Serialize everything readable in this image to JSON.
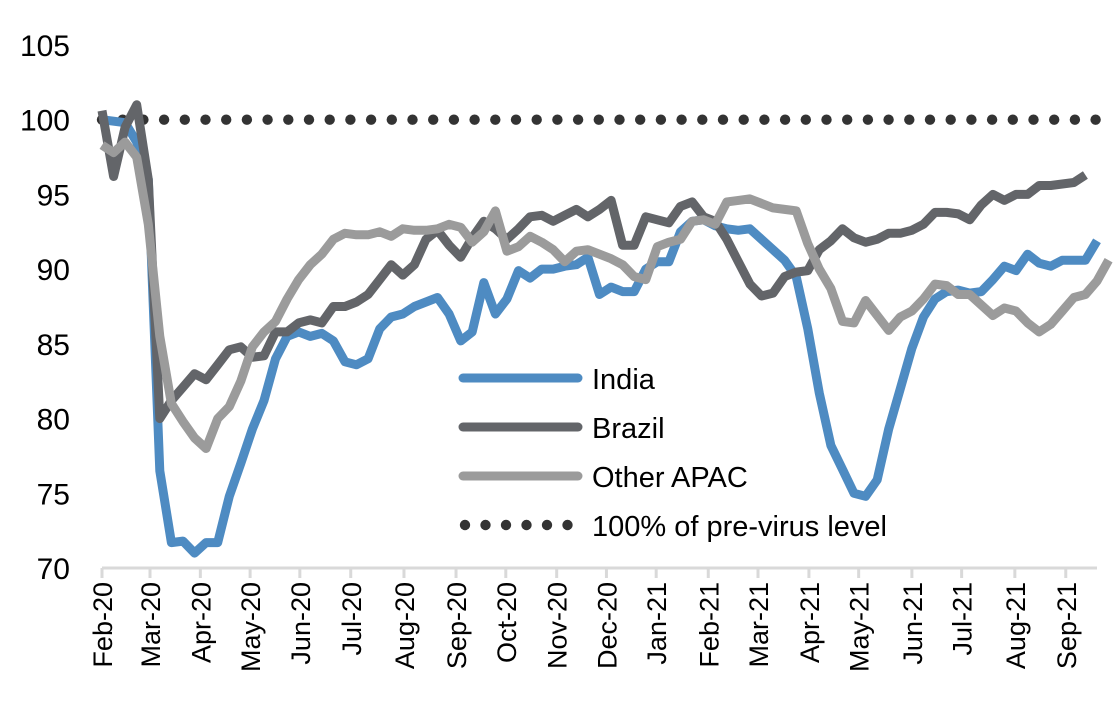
{
  "chart_data": {
    "type": "line",
    "title": "",
    "xlabel": "",
    "ylabel": "",
    "ylim": [
      70,
      105
    ],
    "yticks": [
      "70",
      "75",
      "80",
      "85",
      "90",
      "95",
      "100",
      "105"
    ],
    "ytick_values": [
      70,
      75,
      80,
      85,
      90,
      95,
      100,
      105
    ],
    "xticks": [
      "Feb-20",
      "Mar-20",
      "Apr-20",
      "May-20",
      "Jun-20",
      "Jul-20",
      "Aug-20",
      "Sep-20",
      "Oct-20",
      "Nov-20",
      "Dec-20",
      "Jan-21",
      "Feb-21",
      "Mar-21",
      "Apr-21",
      "May-21",
      "Jun-21",
      "Jul-21",
      "Aug-21",
      "Sep-21"
    ],
    "x_unit": "weeks since start (Feb-20), ~4.35 weeks per month tick",
    "xtick_weeks": [
      0,
      4.15,
      8.5,
      12.8,
      17.1,
      21.5,
      26.1,
      30.6,
      34.9,
      39.3,
      43.6,
      47.9,
      52.4,
      56.7,
      61.1,
      65.4,
      70,
      74.3,
      78.9,
      83.3
    ],
    "grid": false,
    "legend_position": "center",
    "reference_line": {
      "name": "100% of pre-virus level",
      "value": 100
    },
    "series": [
      {
        "name": "India",
        "color": "#4e8bc2",
        "values": [
          100,
          99.9,
          99.8,
          98.5,
          96,
          76.5,
          71.7,
          71.8,
          71,
          71.7,
          71.7,
          74.8,
          77,
          79.3,
          81.2,
          84,
          85.5,
          85.8,
          85.5,
          85.7,
          85.2,
          83.8,
          83.6,
          84,
          86,
          86.8,
          87,
          87.5,
          87.8,
          88.1,
          87,
          85.2,
          85.8,
          89.1,
          87,
          88,
          89.9,
          89.4,
          90,
          90,
          90.2,
          90.3,
          90.8,
          88.3,
          88.8,
          88.5,
          88.5,
          90,
          90.5,
          90.5,
          92.5,
          93.2,
          93.3,
          92.9,
          92.7,
          92.6,
          92.7,
          92,
          91.3,
          90.6,
          89.5,
          86,
          81.7,
          78.2,
          76.6,
          75,
          74.8,
          75.9,
          79.3,
          82,
          84.7,
          86.8,
          88,
          88.5,
          88.6,
          88.4,
          88.5,
          89.3,
          90.2,
          89.9,
          91,
          90.4,
          90.2,
          90.6,
          90.6,
          90.6,
          91.9
        ]
      },
      {
        "name": "Brazil",
        "color": "#636569",
        "values": [
          100.6,
          96.2,
          99.5,
          101,
          96,
          80,
          81.2,
          82.1,
          83,
          82.6,
          83.6,
          84.6,
          84.8,
          84.1,
          84.2,
          85.8,
          85.8,
          86.4,
          86.6,
          86.4,
          87.5,
          87.5,
          87.8,
          88.3,
          89.3,
          90.3,
          89.6,
          90.3,
          92,
          92.6,
          91.6,
          90.8,
          92.1,
          93.2,
          92.7,
          92,
          92.7,
          93.5,
          93.6,
          93.2,
          93.6,
          94,
          93.5,
          94,
          94.6,
          91.6,
          91.6,
          93.5,
          93.3,
          93.1,
          94.2,
          94.5,
          93.5,
          93.2,
          92,
          90.5,
          89,
          88.2,
          88.4,
          89.5,
          89.8,
          89.9,
          91.3,
          91.9,
          92.7,
          92.1,
          91.8,
          92,
          92.4,
          92.4,
          92.6,
          93,
          93.8,
          93.8,
          93.7,
          93.3,
          94.3,
          95,
          94.6,
          95,
          95,
          95.6,
          95.6,
          95.7,
          95.8,
          96.3
        ]
      },
      {
        "name": "Other APAC",
        "color": "#9b9b9b",
        "values": [
          98.3,
          97.8,
          98.5,
          97.5,
          93,
          85.5,
          81,
          79.8,
          78.7,
          78,
          80,
          80.8,
          82.5,
          84.8,
          85.8,
          86.5,
          88,
          89.3,
          90.3,
          91,
          92,
          92.4,
          92.3,
          92.3,
          92.5,
          92.2,
          92.7,
          92.6,
          92.6,
          92.7,
          93,
          92.8,
          91.8,
          92.5,
          93.9,
          91.2,
          91.5,
          92.2,
          91.8,
          91.3,
          90.5,
          91.2,
          91.3,
          91,
          90.7,
          90.3,
          89.5,
          89.3,
          91.5,
          91.8,
          92,
          93.2,
          93.3,
          93,
          94.5,
          94.6,
          94.7,
          94.4,
          94.1,
          94,
          93.9,
          91.7,
          90,
          88.7,
          86.5,
          86.4,
          87.9,
          86.9,
          85.9,
          86.8,
          87.2,
          88,
          89,
          88.9,
          88.3,
          88.3,
          87.6,
          86.9,
          87.4,
          87.2,
          86.4,
          85.8,
          86.3,
          87.2,
          88.1,
          88.3,
          89.2,
          90.6
        ]
      }
    ]
  },
  "legend": {
    "items": [
      {
        "label": "India",
        "color": "#4e8bc2",
        "style": "solid"
      },
      {
        "label": "Brazil",
        "color": "#636569",
        "style": "solid"
      },
      {
        "label": "Other APAC",
        "color": "#9b9b9b",
        "style": "solid"
      },
      {
        "label": "100% of pre-virus level",
        "color": "#333333",
        "style": "dotted"
      }
    ]
  },
  "colors": {
    "axis": "#d9d9d9",
    "reference_dots": "#333333"
  }
}
